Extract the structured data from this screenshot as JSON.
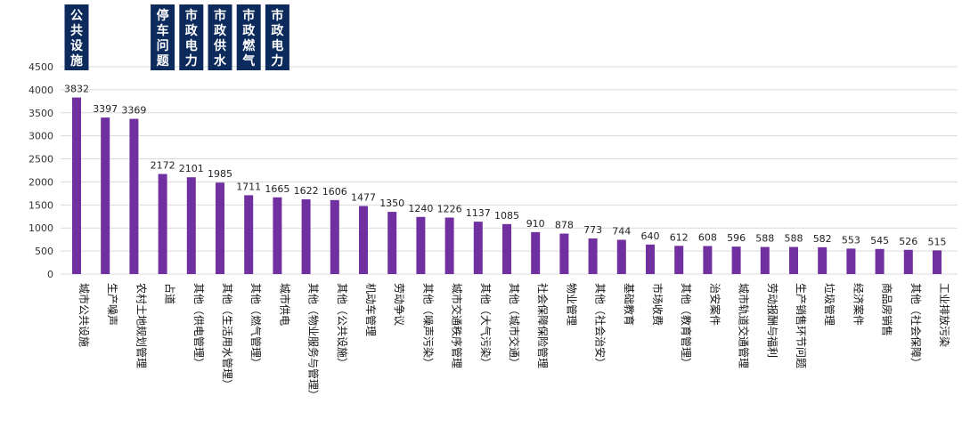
{
  "chart_data": {
    "type": "bar",
    "ylim": [
      0,
      4500
    ],
    "yticks": [
      0,
      500,
      1000,
      1500,
      2000,
      2500,
      3000,
      3500,
      4000,
      4500
    ],
    "grid": true,
    "categories": [
      "城市公共设施",
      "生产噪声",
      "农村土地规划管理",
      "占道",
      "其他（供电管理）",
      "其他（生活用水管理）",
      "其他（燃气管理）",
      "城市供电",
      "其他（物业服务与管理）",
      "其他（公共设施）",
      "机动车管理",
      "劳动争议",
      "其他（噪声污染）",
      "城市交通秩序管理",
      "其他（大气污染）",
      "其他（城市交通）",
      "社会保障保险管理",
      "物业管理",
      "其他（社会治安）",
      "基础教育",
      "市场收费",
      "其他（教育管理）",
      "治安案件",
      "城市轨道交通管理",
      "劳动报酬与福利",
      "生产销售环节问题",
      "垃圾管理",
      "经济案件",
      "商品房销售",
      "其他（社会保障）",
      "工业排放污染"
    ],
    "values": [
      3832,
      3397,
      3369,
      2172,
      2101,
      1985,
      1711,
      1665,
      1622,
      1606,
      1477,
      1350,
      1240,
      1226,
      1137,
      1085,
      910,
      878,
      773,
      744,
      640,
      612,
      608,
      596,
      588,
      588,
      582,
      553,
      545,
      526,
      515
    ],
    "bar_color": "#7030a0",
    "annotations": [
      {
        "text": "公共设施",
        "bar_index": 0
      },
      {
        "text": "停车问题",
        "bar_index": 3
      },
      {
        "text": "市政电力",
        "bar_index": 4
      },
      {
        "text": "市政供水",
        "bar_index": 5
      },
      {
        "text": "市政燃气",
        "bar_index": 6
      },
      {
        "text": "市政电力",
        "bar_index": 7
      }
    ],
    "annotation_color": "#0d2a5c"
  }
}
